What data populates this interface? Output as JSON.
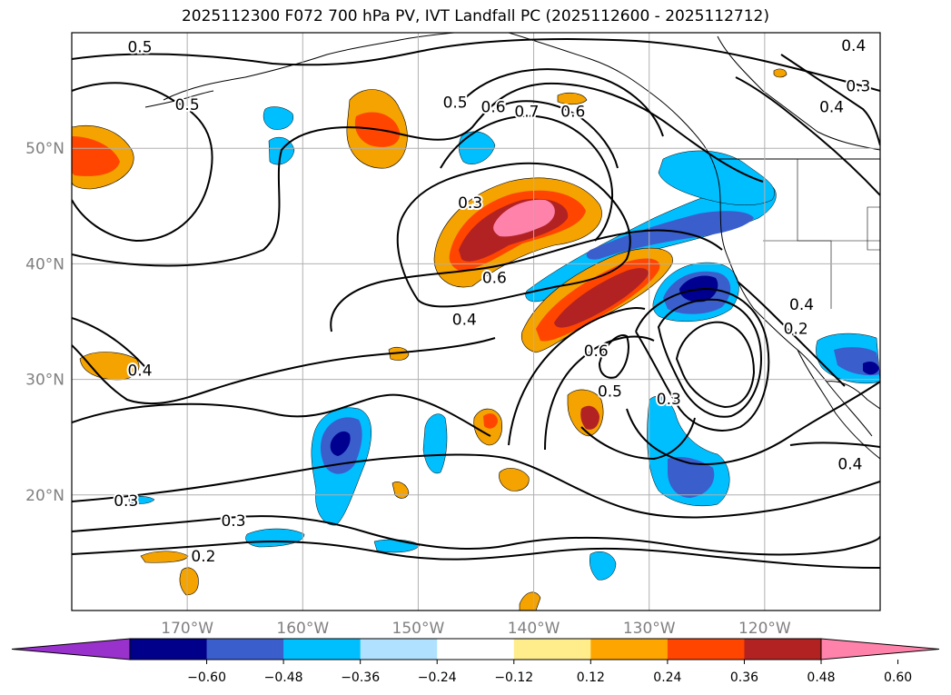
{
  "title": "2025112300 F072 700 hPa PV, IVT Landfall PC (2025112600 - 2025112712)",
  "map": {
    "lon_range": [
      -180,
      -110
    ],
    "lat_range": [
      10,
      60
    ],
    "lat_ticks": [
      {
        "value": 50,
        "label": "50°N"
      },
      {
        "value": 40,
        "label": "40°N"
      },
      {
        "value": 30,
        "label": "30°N"
      },
      {
        "value": 20,
        "label": "20°N"
      }
    ],
    "lon_ticks": [
      {
        "value": -170,
        "label": "170°W"
      },
      {
        "value": -160,
        "label": "160°W"
      },
      {
        "value": -150,
        "label": "150°W"
      },
      {
        "value": -140,
        "label": "140°W"
      },
      {
        "value": -130,
        "label": "130°W"
      },
      {
        "value": -120,
        "label": "120°W"
      }
    ],
    "grid": true,
    "coastline_color": "#000000",
    "contour_color": "#000000",
    "contour_labels": [
      {
        "text": "0.5",
        "lon": -174.1,
        "lat": 58.8
      },
      {
        "text": "0.5",
        "lon": -170.0,
        "lat": 53.8
      },
      {
        "text": "0.5",
        "lon": -146.8,
        "lat": 54.0
      },
      {
        "text": "0.6",
        "lon": -143.5,
        "lat": 53.6
      },
      {
        "text": "0.7",
        "lon": -140.6,
        "lat": 53.2
      },
      {
        "text": "0.6",
        "lon": -136.6,
        "lat": 53.2
      },
      {
        "text": "0.3",
        "lon": -145.5,
        "lat": 45.3
      },
      {
        "text": "0.6",
        "lon": -143.4,
        "lat": 38.8
      },
      {
        "text": "0.4",
        "lon": -146.0,
        "lat": 35.2
      },
      {
        "text": "0.6",
        "lon": -134.6,
        "lat": 32.5
      },
      {
        "text": "0.5",
        "lon": -133.4,
        "lat": 29.0
      },
      {
        "text": "0.3",
        "lon": -128.3,
        "lat": 28.3
      },
      {
        "text": "0.4",
        "lon": -116.8,
        "lat": 36.5
      },
      {
        "text": "0.2",
        "lon": -117.3,
        "lat": 34.4
      },
      {
        "text": "0.4",
        "lon": -174.1,
        "lat": 30.8
      },
      {
        "text": "0.3",
        "lon": -175.3,
        "lat": 19.5
      },
      {
        "text": "0.3",
        "lon": -166.0,
        "lat": 17.8
      },
      {
        "text": "0.2",
        "lon": -168.6,
        "lat": 14.7
      },
      {
        "text": "0.4",
        "lon": -112.6,
        "lat": 22.7
      },
      {
        "text": "0.4",
        "lon": -112.3,
        "lat": 58.9
      },
      {
        "text": "0.3",
        "lon": -111.9,
        "lat": 55.4
      },
      {
        "text": "0.4",
        "lon": -114.2,
        "lat": 53.6
      }
    ],
    "shading_colors": {
      "pos_0.24": "#fde68a",
      "pos_0.36": "#f4a300",
      "pos_0.48": "#ff4500",
      "pos_0.60": "#b22222",
      "pos_max": "#ff82ab",
      "neg_0.24": "#00bfff",
      "neg_0.36": "#3a5fcd",
      "neg_0.48": "#000090",
      "neg_max": "#000080"
    }
  },
  "colorbar": {
    "colors": [
      "#9932cc",
      "#00008b",
      "#3a5fcd",
      "#00bfff",
      "#b0e2ff",
      "#ffffff",
      "#ffec8b",
      "#ffa500",
      "#ff4500",
      "#b22222",
      "#ff82ab"
    ],
    "tick_values": [
      "−0.60",
      "−0.48",
      "−0.36",
      "−0.24",
      "−0.12",
      "0.12",
      "0.24",
      "0.36",
      "0.48",
      "0.60"
    ]
  }
}
